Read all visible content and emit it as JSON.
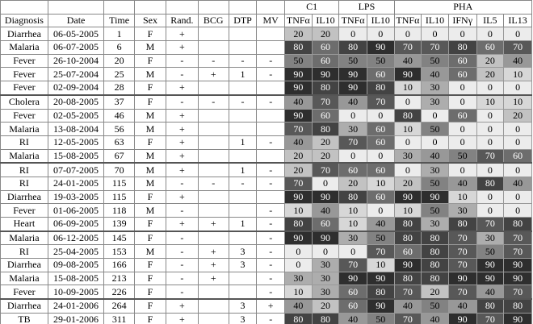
{
  "header": {
    "groups": [
      "C1",
      "LPS",
      "PHA"
    ],
    "group_spans": [
      2,
      2,
      5
    ],
    "columns": [
      "Diagnosis",
      "Date",
      "Time",
      "Sex",
      "Rand.",
      "BCG",
      "DTP",
      "MV",
      "TNFα",
      "IL10",
      "TNFα",
      "IL10",
      "TNFα",
      "IL10",
      "IFNγ",
      "IL5",
      "IL13"
    ]
  },
  "group_breaks": [
    5,
    10,
    15,
    20
  ],
  "rows": [
    [
      "Diarrhea",
      "06-05-2005",
      1,
      "F",
      "+",
      null,
      null,
      null,
      20,
      20,
      0,
      0,
      0,
      0,
      0,
      0,
      0
    ],
    [
      "Malaria",
      "06-07-2005",
      6,
      "M",
      "+",
      null,
      null,
      null,
      80,
      60,
      80,
      90,
      70,
      70,
      80,
      60,
      70
    ],
    [
      "Fever",
      "26-10-2004",
      20,
      "F",
      "-",
      "-",
      "-",
      "-",
      50,
      60,
      50,
      50,
      40,
      50,
      60,
      20,
      40
    ],
    [
      "Fever",
      "25-07-2004",
      25,
      "M",
      "-",
      "+",
      "1",
      "-",
      90,
      90,
      90,
      60,
      90,
      40,
      60,
      20,
      10
    ],
    [
      "Fever",
      "02-09-2004",
      28,
      "F",
      "+",
      null,
      null,
      null,
      90,
      80,
      90,
      80,
      10,
      30,
      0,
      0,
      0
    ],
    [
      "Cholera",
      "20-08-2005",
      37,
      "F",
      "-",
      "-",
      "-",
      "-",
      40,
      70,
      40,
      70,
      0,
      30,
      0,
      10,
      10
    ],
    [
      "Fever",
      "02-05-2005",
      46,
      "M",
      "+",
      null,
      null,
      null,
      90,
      60,
      0,
      0,
      80,
      0,
      60,
      0,
      20
    ],
    [
      "Malaria",
      "13-08-2004",
      56,
      "M",
      "+",
      null,
      null,
      null,
      70,
      80,
      30,
      60,
      10,
      50,
      0,
      0,
      0
    ],
    [
      "RI",
      "12-05-2005",
      63,
      "F",
      "+",
      null,
      "1",
      "-",
      40,
      20,
      70,
      60,
      0,
      0,
      0,
      0,
      0
    ],
    [
      "Malaria",
      "15-08-2005",
      67,
      "M",
      "+",
      null,
      null,
      null,
      20,
      20,
      0,
      0,
      30,
      40,
      50,
      70,
      60
    ],
    [
      "RI",
      "07-07-2005",
      70,
      "M",
      "+",
      null,
      "1",
      "-",
      20,
      70,
      60,
      60,
      0,
      30,
      0,
      0,
      0
    ],
    [
      "RI",
      "24-01-2005",
      115,
      "M",
      "-",
      "-",
      "-",
      "-",
      70,
      0,
      20,
      10,
      20,
      50,
      40,
      80,
      40
    ],
    [
      "Diarrhea",
      "19-03-2005",
      115,
      "F",
      "+",
      null,
      null,
      null,
      90,
      90,
      80,
      60,
      90,
      90,
      10,
      0,
      0
    ],
    [
      "Fever",
      "01-06-2005",
      118,
      "M",
      "-",
      null,
      null,
      "-",
      10,
      40,
      10,
      0,
      10,
      50,
      30,
      0,
      0
    ],
    [
      "Heart",
      "06-09-2005",
      139,
      "F",
      "+",
      "+",
      "1",
      "-",
      80,
      60,
      10,
      40,
      80,
      30,
      80,
      70,
      80
    ],
    [
      "Malaria",
      "06-12-2005",
      145,
      "F",
      "-",
      null,
      null,
      "-",
      90,
      90,
      30,
      50,
      80,
      80,
      70,
      30,
      70
    ],
    [
      "RI",
      "25-04-2005",
      153,
      "M",
      "-",
      "+",
      "3",
      "-",
      0,
      0,
      0,
      70,
      60,
      80,
      70,
      50,
      70
    ],
    [
      "Diarrhea",
      "09-08-2005",
      166,
      "F",
      "-",
      "+",
      "3",
      "-",
      0,
      30,
      70,
      10,
      90,
      80,
      70,
      90,
      90
    ],
    [
      "Malaria",
      "15-08-2005",
      213,
      "F",
      "-",
      "+",
      null,
      "-",
      30,
      30,
      90,
      90,
      80,
      80,
      90,
      90,
      90
    ],
    [
      "Fever",
      "10-09-2005",
      226,
      "F",
      "-",
      null,
      null,
      "-",
      10,
      30,
      60,
      80,
      70,
      20,
      70,
      40,
      70
    ],
    [
      "Diarrhea",
      "24-01-2006",
      264,
      "F",
      "+",
      null,
      "3",
      "+",
      40,
      20,
      60,
      90,
      40,
      50,
      40,
      80,
      80
    ],
    [
      "TB",
      "29-01-2006",
      311,
      "F",
      "+",
      null,
      "3",
      "-",
      80,
      80,
      40,
      50,
      70,
      40,
      90,
      70,
      90
    ]
  ]
}
